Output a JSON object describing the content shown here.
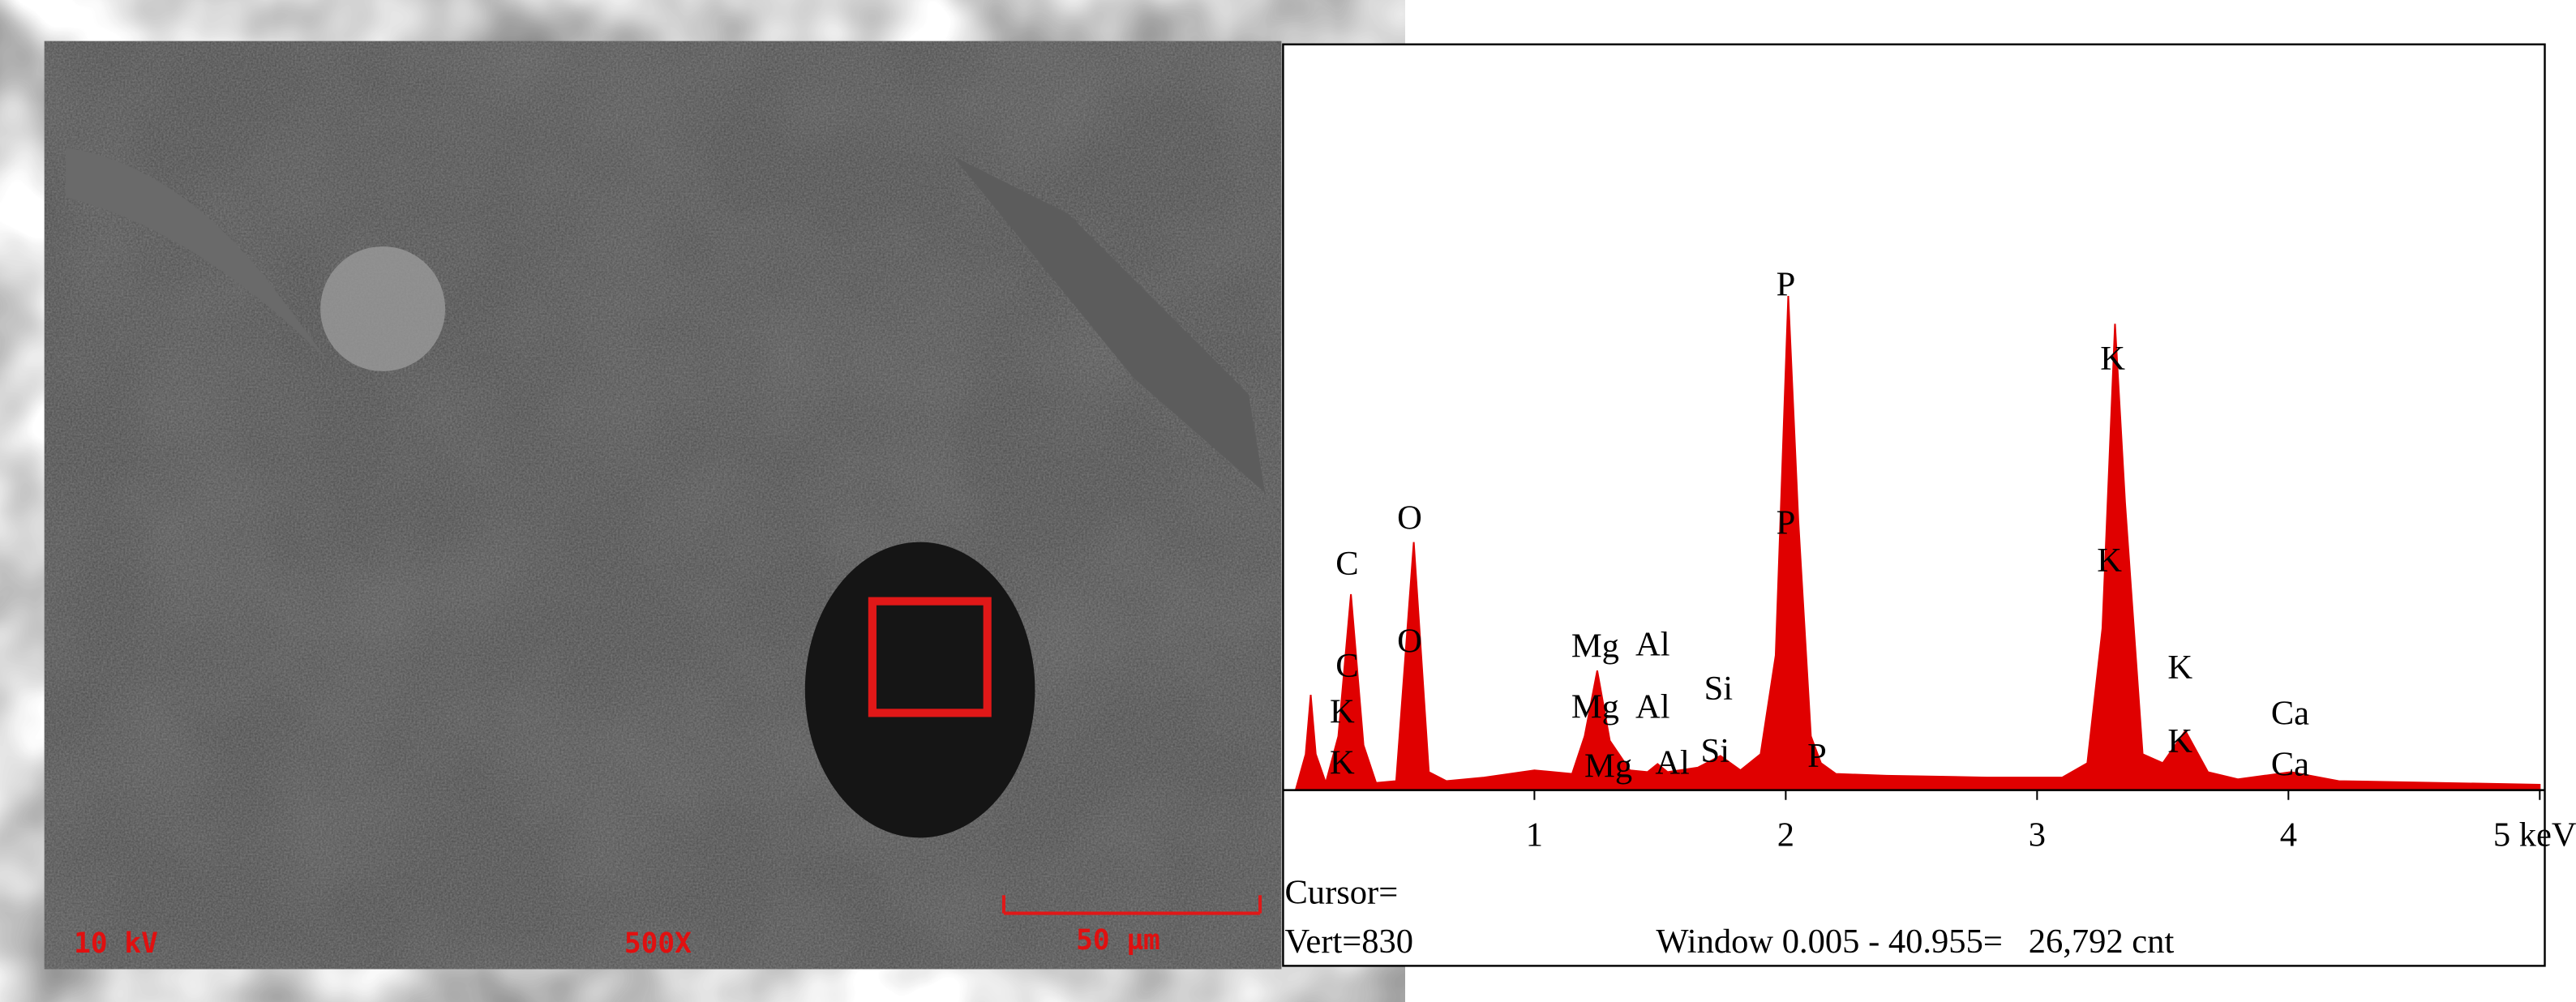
{
  "micrograph": {
    "voltage": "10 kV",
    "magnification": "500X",
    "scale_bar": "50 µm"
  },
  "chart_data": {
    "type": "area",
    "color": "#e00000",
    "x": [
      0.05,
      0.09,
      0.11,
      0.13,
      0.17,
      0.22,
      0.27,
      0.32,
      0.37,
      0.45,
      0.52,
      0.58,
      0.65,
      0.8,
      1.0,
      1.15,
      1.2,
      1.25,
      1.3,
      1.38,
      1.45,
      1.49,
      1.53,
      1.65,
      1.74,
      1.82,
      1.9,
      1.96,
      2.01,
      2.05,
      2.1,
      2.14,
      2.2,
      2.4,
      2.8,
      3.1,
      3.2,
      3.26,
      3.31,
      3.35,
      3.42,
      3.5,
      3.59,
      3.68,
      3.8,
      4.01,
      4.2,
      4.6,
      5.0
    ],
    "values": [
      0,
      40,
      106,
      40,
      8,
      60,
      218,
      50,
      8,
      10,
      276,
      20,
      10,
      14,
      22,
      18,
      60,
      133,
      55,
      22,
      20,
      29,
      20,
      25,
      38,
      22,
      40,
      150,
      550,
      300,
      60,
      30,
      18,
      16,
      14,
      14,
      30,
      180,
      519,
      320,
      40,
      30,
      66,
      20,
      12,
      20,
      10,
      8,
      6
    ],
    "xlim": [
      0,
      5.02
    ],
    "ylim": [
      0,
      830
    ],
    "xticks": [
      1,
      2,
      3,
      4,
      {
        "value": 5,
        "label": "5 keV"
      }
    ],
    "peak_labels": [
      "C",
      "C",
      "K",
      "K",
      "O",
      "O",
      "Mg",
      "Al",
      "Mg",
      "Al",
      "Mg",
      "Al",
      "Si",
      "Si",
      "P",
      "P",
      "P",
      "K",
      "K",
      "K",
      "K",
      "Ca",
      "Ca"
    ],
    "cursor": "Cursor=",
    "vert": "Vert=830",
    "window": "Window 0.005 - 40.955=   26,792 cnt"
  }
}
